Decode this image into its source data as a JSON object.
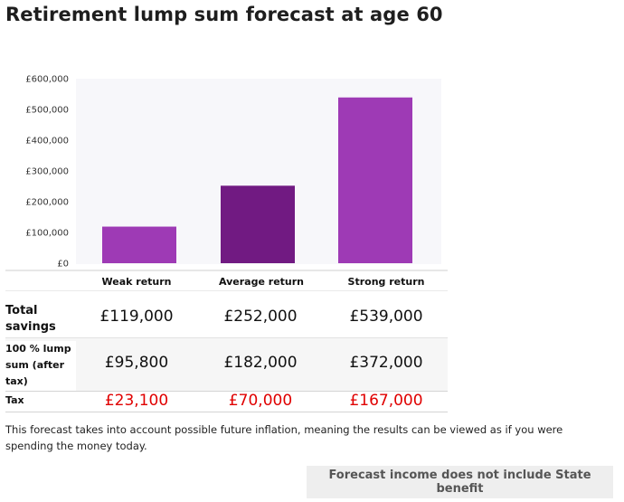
{
  "title": "Retirement lump sum forecast at age 60",
  "chart_data": {
    "type": "bar",
    "title": "Retirement lump sum forecast at age 60",
    "categories": [
      "Weak return",
      "Average return",
      "Strong return"
    ],
    "values": [
      119000,
      252000,
      539000
    ],
    "ylim": [
      0,
      600000
    ],
    "yticks": [
      {
        "value": 0,
        "label": "£0"
      },
      {
        "value": 100000,
        "label": "£100,000"
      },
      {
        "value": 200000,
        "label": "£200,000"
      },
      {
        "value": 300000,
        "label": "£300,000"
      },
      {
        "value": 400000,
        "label": "£400,000"
      },
      {
        "value": 500000,
        "label": "£500,000"
      },
      {
        "value": 600000,
        "label": "£600,000"
      }
    ],
    "colors": [
      "#9e3ab5",
      "#711a82",
      "#9e3ab5"
    ],
    "grid": false,
    "legend": "none"
  },
  "table": {
    "rows": [
      {
        "label": "Total savings",
        "values": [
          "£119,000",
          "£252,000",
          "£539,000"
        ]
      },
      {
        "label": "100 % lump sum (after tax)",
        "values": [
          "£95,800",
          "£182,000",
          "£372,000"
        ]
      },
      {
        "label": "Tax",
        "values": [
          "£23,100",
          "£70,000",
          "£167,000"
        ]
      }
    ],
    "tax_color": "#e00000"
  },
  "note": "This forecast takes into account possible future inflation, meaning the results can be viewed as if you were spending the money today.",
  "state_button_label": "Forecast income does not include State benefit"
}
